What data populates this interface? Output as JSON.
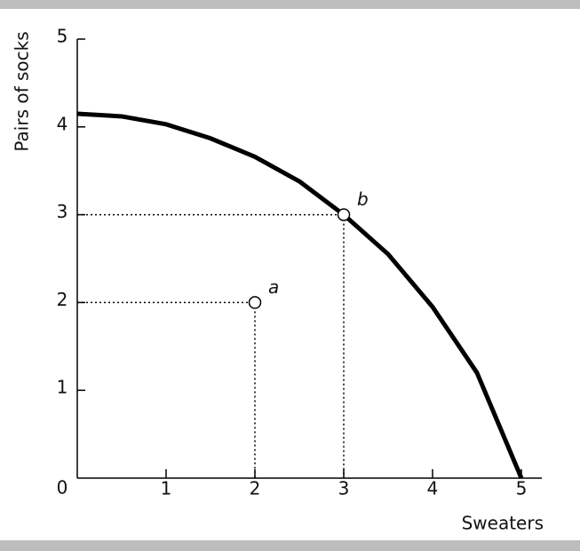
{
  "chart_data": {
    "type": "line",
    "x_label": "Sweaters",
    "y_label": "Pairs of socks",
    "xlim": [
      0,
      5
    ],
    "ylim": [
      0,
      5
    ],
    "xticks": [
      0,
      1,
      2,
      3,
      4,
      5
    ],
    "yticks": [
      1,
      2,
      3,
      4,
      5
    ],
    "x": [
      0,
      0.5,
      1,
      1.5,
      2,
      2.5,
      3,
      3.5,
      4,
      4.5,
      5
    ],
    "series": [
      {
        "color": "#000000",
        "values": [
          4.15,
          4.12,
          4.03,
          3.87,
          3.66,
          3.38,
          3,
          2.55,
          1.95,
          1.2,
          0
        ]
      }
    ],
    "points": [
      {
        "label": "a",
        "x": 2,
        "y": 2
      },
      {
        "label": "b",
        "x": 3,
        "y": 3
      }
    ]
  }
}
